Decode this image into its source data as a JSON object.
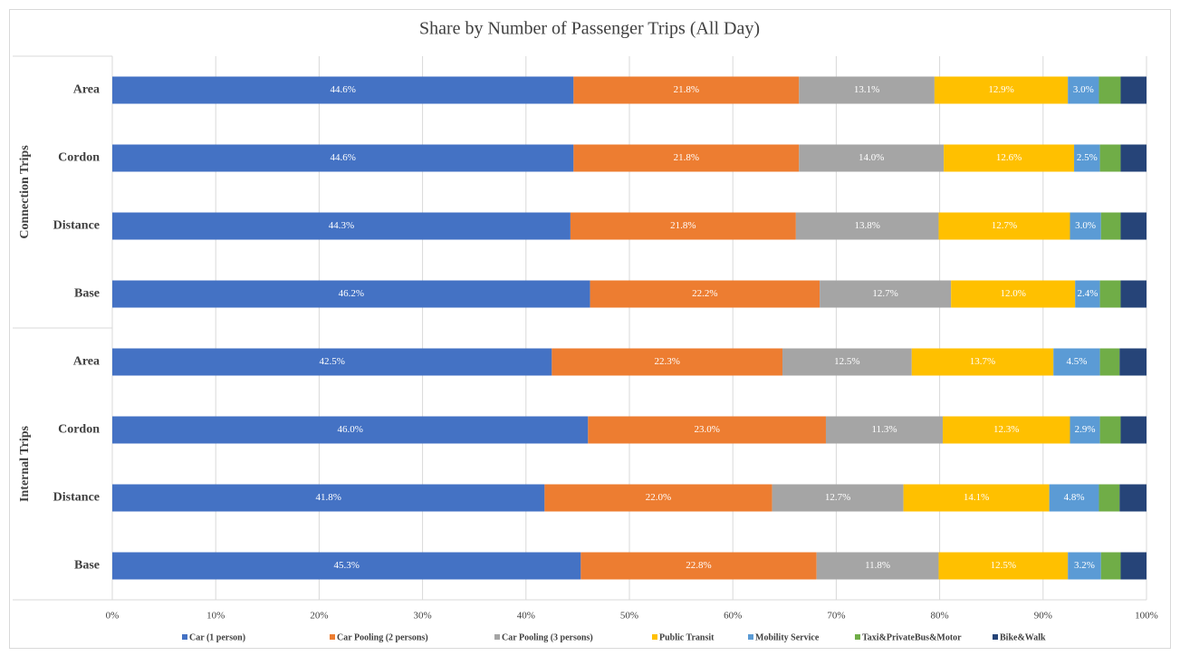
{
  "chart_data": {
    "type": "stacked-bar-horizontal",
    "title": "Share by Number of Passenger Trips (All Day)",
    "groups": [
      {
        "name": "Connection Trips",
        "categories": [
          "Area",
          "Cordon",
          "Distance",
          "Base"
        ]
      },
      {
        "name": "Internal Trips",
        "categories": [
          "Area",
          "Cordon",
          "Distance",
          "Base"
        ]
      }
    ],
    "series": [
      {
        "name": "Car (1 person)",
        "color": "#4472c4",
        "values": [
          44.6,
          44.6,
          44.3,
          46.2,
          42.5,
          46.0,
          41.8,
          45.3
        ],
        "value_labels": [
          "44.6%",
          "44.6%",
          "44.3%",
          "46.2%",
          "42.5%",
          "46.0%",
          "41.8%",
          "45.3%"
        ]
      },
      {
        "name": "Car Pooling (2 persons)",
        "color": "#ed7d31",
        "values": [
          21.8,
          21.8,
          21.8,
          22.2,
          22.3,
          23.0,
          22.0,
          22.8
        ],
        "value_labels": [
          "21.8%",
          "21.8%",
          "21.8%",
          "22.2%",
          "22.3%",
          "23.0%",
          "22.0%",
          "22.8%"
        ]
      },
      {
        "name": "Car Pooling (3 persons)",
        "color": "#a5a5a5",
        "values": [
          13.1,
          14.0,
          13.8,
          12.7,
          12.5,
          11.3,
          12.7,
          11.8
        ],
        "value_labels": [
          "13.1%",
          "14.0%",
          "13.8%",
          "12.7%",
          "12.5%",
          "11.3%",
          "12.7%",
          "11.8%"
        ]
      },
      {
        "name": "Public Transit",
        "color": "#ffc000",
        "values": [
          12.9,
          12.6,
          12.7,
          12.0,
          13.7,
          12.3,
          14.1,
          12.5
        ],
        "value_labels": [
          "12.9%",
          "12.6%",
          "12.7%",
          "12.0%",
          "13.7%",
          "12.3%",
          "14.1%",
          "12.5%"
        ]
      },
      {
        "name": "Mobility Service",
        "color": "#5b9bd5",
        "values": [
          3.0,
          2.5,
          3.0,
          2.4,
          4.5,
          2.9,
          4.8,
          3.2
        ],
        "value_labels": [
          "3.0%",
          "2.5%",
          "3.0%",
          "2.4%",
          "4.5%",
          "2.9%",
          "4.8%",
          "3.2%"
        ]
      },
      {
        "name": "Taxi&PrivateBus&Motor",
        "color": "#70ad47",
        "values": [
          2.1,
          2.0,
          1.9,
          2.0,
          1.9,
          2.0,
          2.0,
          1.9
        ]
      },
      {
        "name": "Bike&Walk",
        "color": "#264478",
        "values": [
          2.5,
          2.5,
          2.5,
          2.5,
          2.6,
          2.5,
          2.6,
          2.5
        ]
      }
    ],
    "xlim": [
      0,
      100
    ],
    "xticks": [
      {
        "value": 0,
        "label": "0%"
      },
      {
        "value": 10,
        "label": "10%"
      },
      {
        "value": 20,
        "label": "20%"
      },
      {
        "value": 30,
        "label": "30%"
      },
      {
        "value": 40,
        "label": "40%"
      },
      {
        "value": 50,
        "label": "50%"
      },
      {
        "value": 60,
        "label": "60%"
      },
      {
        "value": 70,
        "label": "70%"
      },
      {
        "value": 80,
        "label": "80%"
      },
      {
        "value": 90,
        "label": "90%"
      },
      {
        "value": 100,
        "label": "100%"
      }
    ],
    "grid": true,
    "legend": "bottom"
  }
}
